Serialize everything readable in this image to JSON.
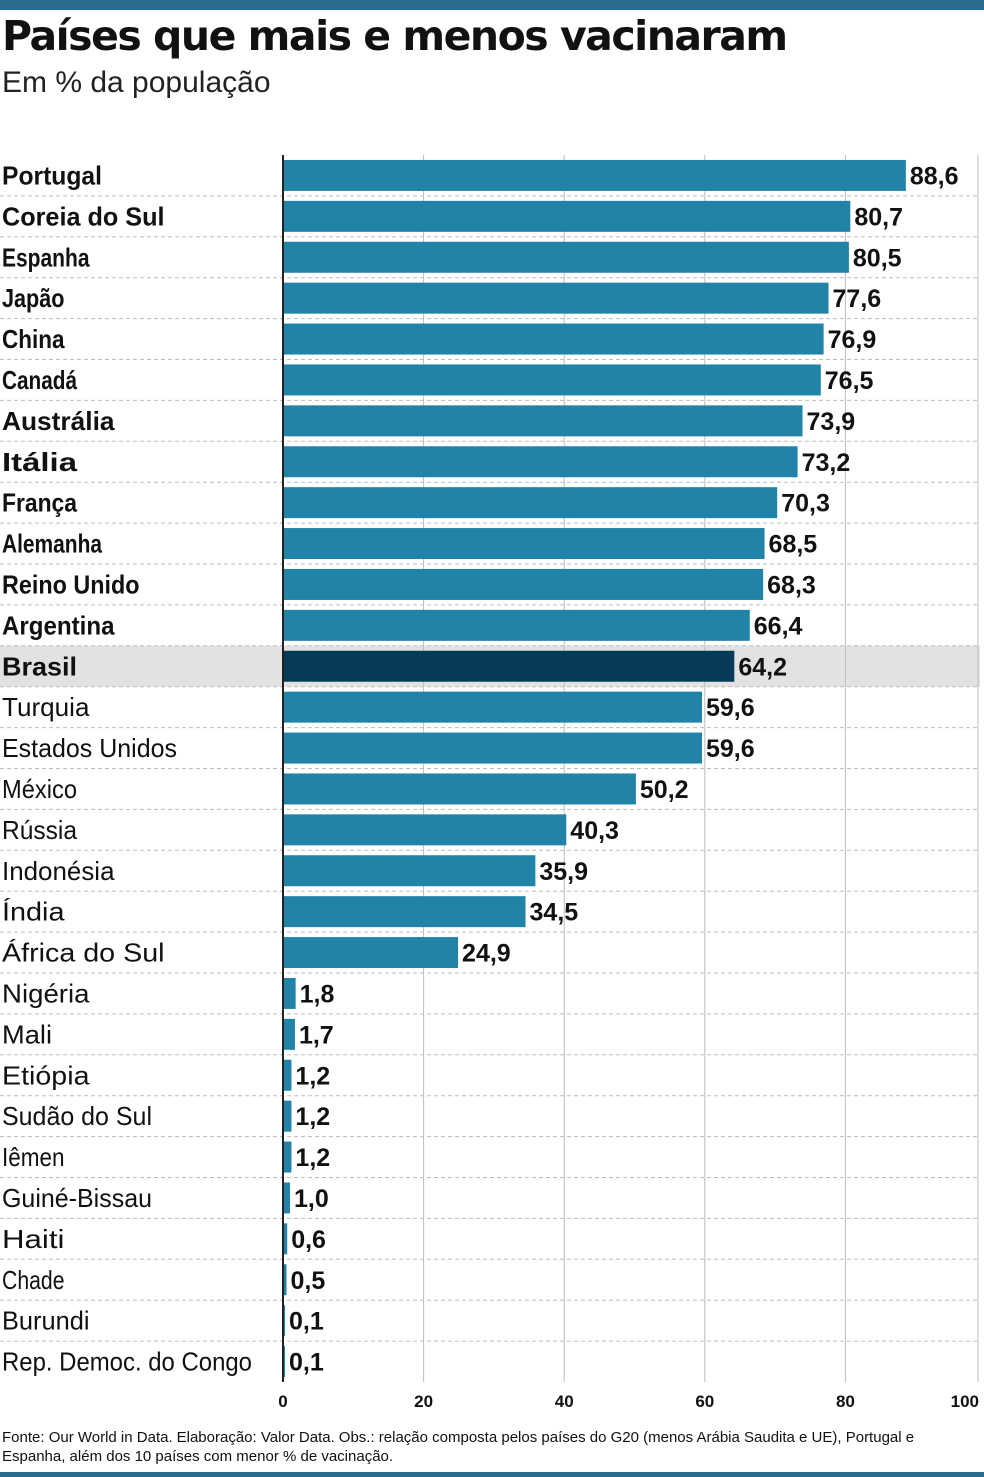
{
  "colors": {
    "bar": "#2283a8",
    "highlight_bar": "#073a57",
    "highlight_band": "#e2e2e2",
    "accent_rule": "#2a6d8f",
    "grid": "#bdbdbd"
  },
  "chart_data": {
    "type": "bar",
    "orientation": "horizontal",
    "title": "Países que mais e menos vacinaram",
    "subtitle": "Em % da população",
    "categories": [
      "Portugal",
      "Coreia do Sul",
      "Espanha",
      "Japão",
      "China",
      "Canadá",
      "Austrália",
      "Itália",
      "França",
      "Alemanha",
      "Reino Unido",
      "Argentina",
      "Brasil",
      "Turquia",
      "Estados Unidos",
      "México",
      "Rússia",
      "Indonésia",
      "Índia",
      "África do Sul",
      "Nigéria",
      "Mali",
      "Etiópia",
      "Sudão do Sul",
      "Iêmen",
      "Guiné-Bissau",
      "Haiti",
      "Chade",
      "Burundi",
      "Rep. Democ. do Congo"
    ],
    "values": [
      88.6,
      80.7,
      80.5,
      77.6,
      76.9,
      76.5,
      73.9,
      73.2,
      70.3,
      68.5,
      68.3,
      66.4,
      64.2,
      59.6,
      59.6,
      50.2,
      40.3,
      35.9,
      34.5,
      24.9,
      1.8,
      1.7,
      1.2,
      1.2,
      1.2,
      1.0,
      0.6,
      0.5,
      0.1,
      0.1
    ],
    "value_labels": [
      "88,6",
      "80,7",
      "80,5",
      "77,6",
      "76,9",
      "76,5",
      "73,9",
      "73,2",
      "70,3",
      "68,5",
      "68,3",
      "66,4",
      "64,2",
      "59,6",
      "59,6",
      "50,2",
      "40,3",
      "35,9",
      "34,5",
      "24,9",
      "1,8",
      "1,7",
      "1,2",
      "1,2",
      "1,2",
      "1,0",
      "0,6",
      "0,5",
      "0,1",
      "0,1"
    ],
    "bold_categories": [
      "Portugal",
      "Coreia do Sul",
      "Espanha",
      "Japão",
      "China",
      "Canadá",
      "Austrália",
      "Itália",
      "França",
      "Alemanha",
      "Reino Unido",
      "Argentina",
      "Brasil"
    ],
    "highlight": "Brasil",
    "xlim": [
      0,
      100
    ],
    "xticks": [
      "0",
      "20",
      "40",
      "60",
      "80",
      "100"
    ],
    "grid": true
  },
  "footnote": {
    "source": "Fonte: Our World in Data.",
    "credit": "Elaboração: Valor Data.",
    "note": "Obs.: relação composta pelos países do G20 (menos Arábia Saudita e UE), Portugal e Espanha, além dos 10 países com menor % de vacinação."
  }
}
